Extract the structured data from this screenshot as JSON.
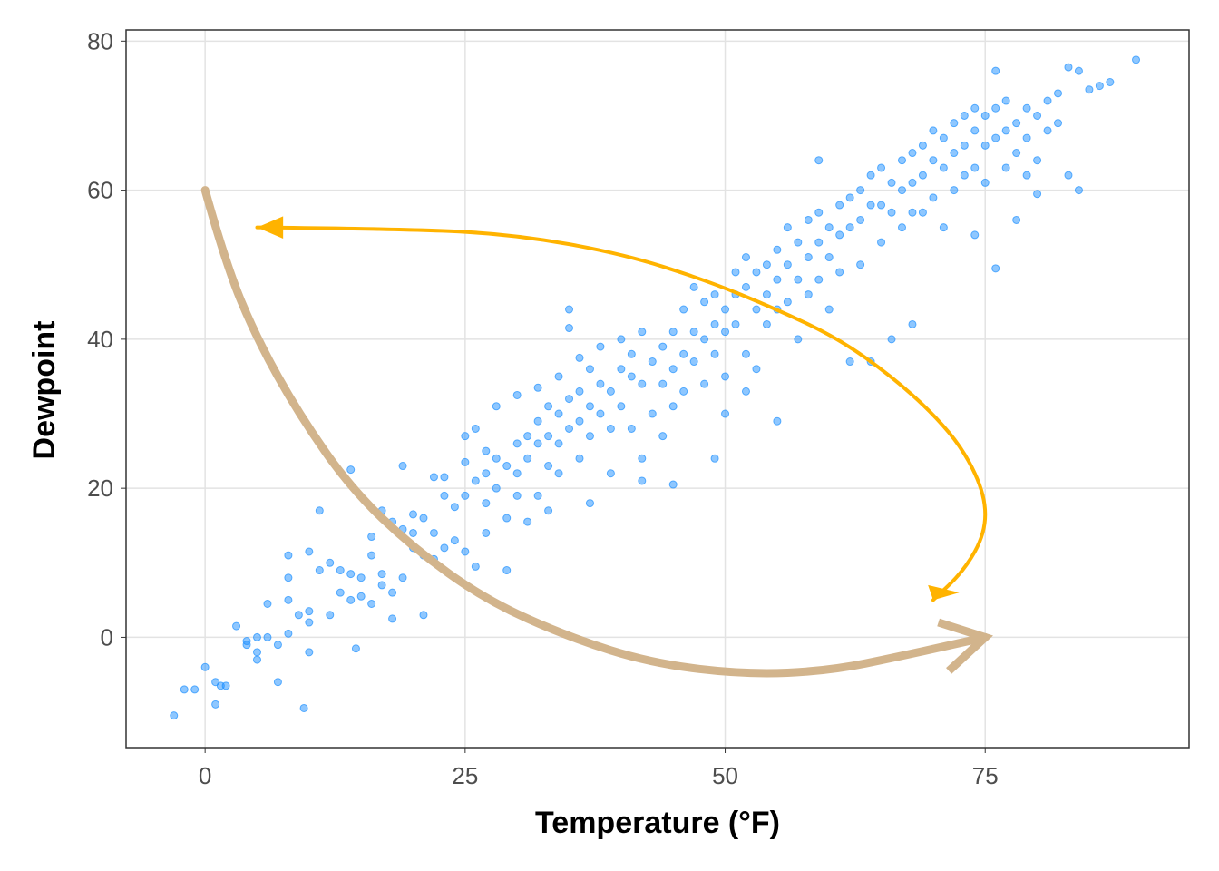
{
  "chart_data": {
    "type": "scatter",
    "title": "",
    "xlabel": "Temperature (°F)",
    "ylabel": "Dewpoint",
    "xlim": [
      -7.6,
      94.6
    ],
    "ylim": [
      -14.8,
      81.5
    ],
    "xticks": [
      0,
      25,
      50,
      75
    ],
    "yticks": [
      0,
      20,
      40,
      60,
      80
    ],
    "xtick_labels": [
      "0",
      "25",
      "50",
      "75"
    ],
    "ytick_labels": [
      "0",
      "20",
      "40",
      "60",
      "80"
    ],
    "grid": true,
    "point_color": "#1e90ff",
    "points": [
      [
        -3,
        -10.5
      ],
      [
        -2,
        -7
      ],
      [
        -1,
        -7
      ],
      [
        0,
        -4
      ],
      [
        1,
        -6
      ],
      [
        1,
        -9
      ],
      [
        1.5,
        -6.5
      ],
      [
        2,
        -6.5
      ],
      [
        3,
        1.5
      ],
      [
        4,
        -0.5
      ],
      [
        4,
        -1
      ],
      [
        5,
        0
      ],
      [
        5,
        -2
      ],
      [
        5,
        -3
      ],
      [
        6,
        0
      ],
      [
        6,
        4.5
      ],
      [
        7,
        -6
      ],
      [
        7,
        -1
      ],
      [
        8,
        11
      ],
      [
        8,
        8
      ],
      [
        8,
        5
      ],
      [
        8,
        0.5
      ],
      [
        9,
        3
      ],
      [
        10,
        11.5
      ],
      [
        10,
        3.5
      ],
      [
        10,
        2
      ],
      [
        10,
        -2
      ],
      [
        9.5,
        -9.5
      ],
      [
        11,
        17
      ],
      [
        11,
        9
      ],
      [
        12,
        10
      ],
      [
        12,
        3
      ],
      [
        13,
        6
      ],
      [
        13,
        9
      ],
      [
        14,
        22.5
      ],
      [
        14,
        5
      ],
      [
        14,
        8.5
      ],
      [
        14.5,
        -1.5
      ],
      [
        15,
        8
      ],
      [
        15,
        5.5
      ],
      [
        16,
        11
      ],
      [
        16,
        13.5
      ],
      [
        16,
        4.5
      ],
      [
        17,
        17
      ],
      [
        17,
        7
      ],
      [
        17,
        8.5
      ],
      [
        18,
        2.5
      ],
      [
        18,
        6
      ],
      [
        18,
        15.5
      ],
      [
        19,
        23
      ],
      [
        19,
        14.5
      ],
      [
        19,
        8
      ],
      [
        20,
        16.5
      ],
      [
        20,
        12
      ],
      [
        20,
        14
      ],
      [
        21,
        11
      ],
      [
        21,
        16
      ],
      [
        21,
        3
      ],
      [
        22,
        21.5
      ],
      [
        22,
        14
      ],
      [
        22,
        10.5
      ],
      [
        23,
        19
      ],
      [
        23,
        12
      ],
      [
        23,
        21.5
      ],
      [
        24,
        17.5
      ],
      [
        24,
        13
      ],
      [
        25,
        23.5
      ],
      [
        25,
        19
      ],
      [
        25,
        11.5
      ],
      [
        25,
        27
      ],
      [
        26,
        28
      ],
      [
        26,
        21
      ],
      [
        26,
        9.5
      ],
      [
        27,
        22
      ],
      [
        27,
        18
      ],
      [
        27,
        14
      ],
      [
        27,
        25
      ],
      [
        28,
        24
      ],
      [
        28,
        20
      ],
      [
        28,
        31
      ],
      [
        29,
        9
      ],
      [
        29,
        23
      ],
      [
        29,
        16
      ],
      [
        30,
        26
      ],
      [
        30,
        22
      ],
      [
        30,
        19
      ],
      [
        30,
        32.5
      ],
      [
        31,
        27
      ],
      [
        31,
        24
      ],
      [
        31,
        15.5
      ],
      [
        32,
        33.5
      ],
      [
        32,
        29
      ],
      [
        32,
        26
      ],
      [
        32,
        19
      ],
      [
        33,
        31
      ],
      [
        33,
        27
      ],
      [
        33,
        23
      ],
      [
        33,
        17
      ],
      [
        34,
        30
      ],
      [
        34,
        35
      ],
      [
        34,
        26
      ],
      [
        34,
        22
      ],
      [
        35,
        44
      ],
      [
        35,
        32
      ],
      [
        35,
        28
      ],
      [
        35,
        41.5
      ],
      [
        36,
        29
      ],
      [
        36,
        33
      ],
      [
        36,
        24
      ],
      [
        36,
        37.5
      ],
      [
        37,
        36
      ],
      [
        37,
        31
      ],
      [
        37,
        18
      ],
      [
        37,
        27
      ],
      [
        38,
        34
      ],
      [
        38,
        30
      ],
      [
        38,
        39
      ],
      [
        39,
        33
      ],
      [
        39,
        28
      ],
      [
        39,
        22
      ],
      [
        40,
        36
      ],
      [
        40,
        40
      ],
      [
        40,
        31
      ],
      [
        41,
        35
      ],
      [
        41,
        28
      ],
      [
        41,
        38
      ],
      [
        42,
        41
      ],
      [
        42,
        34
      ],
      [
        42,
        24
      ],
      [
        42,
        21
      ],
      [
        43,
        37
      ],
      [
        43,
        30
      ],
      [
        44,
        39
      ],
      [
        44,
        34
      ],
      [
        44,
        27
      ],
      [
        45,
        41
      ],
      [
        45,
        36
      ],
      [
        45,
        31
      ],
      [
        45,
        20.5
      ],
      [
        46,
        44
      ],
      [
        46,
        38
      ],
      [
        46,
        33
      ],
      [
        47,
        47
      ],
      [
        47,
        41
      ],
      [
        47,
        37
      ],
      [
        48,
        45
      ],
      [
        48,
        40
      ],
      [
        48,
        34
      ],
      [
        49,
        42
      ],
      [
        49,
        46
      ],
      [
        49,
        38
      ],
      [
        49,
        24
      ],
      [
        50,
        44
      ],
      [
        50,
        41
      ],
      [
        50,
        35
      ],
      [
        50,
        30
      ],
      [
        51,
        49
      ],
      [
        51,
        46
      ],
      [
        51,
        42
      ],
      [
        52,
        51
      ],
      [
        52,
        47
      ],
      [
        52,
        38
      ],
      [
        52,
        33
      ],
      [
        53,
        49
      ],
      [
        53,
        44
      ],
      [
        53,
        36
      ],
      [
        54,
        50
      ],
      [
        54,
        46
      ],
      [
        54,
        42
      ],
      [
        55,
        52
      ],
      [
        55,
        48
      ],
      [
        55,
        44
      ],
      [
        55,
        29
      ],
      [
        56,
        55
      ],
      [
        56,
        50
      ],
      [
        56,
        45
      ],
      [
        57,
        53
      ],
      [
        57,
        48
      ],
      [
        57,
        40
      ],
      [
        58,
        56
      ],
      [
        58,
        51
      ],
      [
        58,
        46
      ],
      [
        59,
        57
      ],
      [
        59,
        53
      ],
      [
        59,
        64
      ],
      [
        59,
        48
      ],
      [
        60,
        55
      ],
      [
        60,
        51
      ],
      [
        60,
        44
      ],
      [
        61,
        58
      ],
      [
        61,
        54
      ],
      [
        61,
        49
      ],
      [
        62,
        59
      ],
      [
        62,
        55
      ],
      [
        62,
        37
      ],
      [
        63,
        60
      ],
      [
        63,
        56
      ],
      [
        63,
        50
      ],
      [
        64,
        58
      ],
      [
        64,
        62
      ],
      [
        64,
        37
      ],
      [
        65,
        63
      ],
      [
        65,
        58
      ],
      [
        65,
        53
      ],
      [
        66,
        61
      ],
      [
        66,
        57
      ],
      [
        66,
        40
      ],
      [
        67,
        64
      ],
      [
        67,
        60
      ],
      [
        67,
        55
      ],
      [
        68,
        65
      ],
      [
        68,
        61
      ],
      [
        68,
        57
      ],
      [
        68,
        42
      ],
      [
        69,
        66
      ],
      [
        69,
        62
      ],
      [
        69,
        57
      ],
      [
        70,
        68
      ],
      [
        70,
        64
      ],
      [
        70,
        59
      ],
      [
        71,
        67
      ],
      [
        71,
        63
      ],
      [
        71,
        55
      ],
      [
        72,
        69
      ],
      [
        72,
        65
      ],
      [
        72,
        60
      ],
      [
        73,
        70
      ],
      [
        73,
        66
      ],
      [
        73,
        62
      ],
      [
        74,
        71
      ],
      [
        74,
        68
      ],
      [
        74,
        63
      ],
      [
        74,
        54
      ],
      [
        75,
        70
      ],
      [
        75,
        66
      ],
      [
        75,
        61
      ],
      [
        76,
        76
      ],
      [
        76,
        71
      ],
      [
        76,
        67
      ],
      [
        76,
        49.5
      ],
      [
        77,
        72
      ],
      [
        77,
        68
      ],
      [
        77,
        63
      ],
      [
        78,
        69
      ],
      [
        78,
        65
      ],
      [
        78,
        56
      ],
      [
        79,
        71
      ],
      [
        79,
        67
      ],
      [
        79,
        62
      ],
      [
        80,
        70
      ],
      [
        80,
        64
      ],
      [
        80,
        59.5
      ],
      [
        81,
        72
      ],
      [
        81,
        68
      ],
      [
        82,
        73
      ],
      [
        82,
        69
      ],
      [
        83,
        76.5
      ],
      [
        83,
        62
      ],
      [
        84,
        76
      ],
      [
        84,
        60
      ],
      [
        85,
        73.5
      ],
      [
        86,
        74
      ],
      [
        87,
        74.5
      ],
      [
        89.5,
        77.5
      ]
    ],
    "annotations": [
      {
        "name": "tan-arrow",
        "color": "#d2b48c",
        "width": 9,
        "path": [
          [
            0,
            60
          ],
          [
            2,
            50
          ],
          [
            5,
            40
          ],
          [
            9,
            30
          ],
          [
            14,
            20
          ],
          [
            20,
            12
          ],
          [
            27,
            5
          ],
          [
            35,
            0
          ],
          [
            43,
            -3.5
          ],
          [
            52,
            -5
          ],
          [
            60,
            -4.5
          ],
          [
            67,
            -2.5
          ],
          [
            75,
            0
          ]
        ],
        "head": [
          [
            70.5,
            2
          ],
          [
            75,
            0
          ],
          [
            71.5,
            -4.5
          ]
        ]
      },
      {
        "name": "gold-arrow",
        "color": "#ffb300",
        "width": 4,
        "path": [
          [
            5,
            55
          ],
          [
            20,
            54.8
          ],
          [
            30,
            54
          ],
          [
            40,
            51.5
          ],
          [
            48,
            48
          ],
          [
            55,
            44
          ],
          [
            61,
            40
          ],
          [
            66,
            35
          ],
          [
            70,
            30
          ],
          [
            73,
            25
          ],
          [
            75,
            19
          ],
          [
            75,
            14
          ],
          [
            73,
            9
          ],
          [
            70,
            5
          ]
        ],
        "head": [
          [
            5,
            55
          ],
          [
            7.5,
            56.5
          ],
          [
            7.5,
            53.5
          ],
          [
            69.5,
            7
          ],
          [
            70,
            5
          ],
          [
            72.5,
            6
          ]
        ]
      }
    ]
  }
}
